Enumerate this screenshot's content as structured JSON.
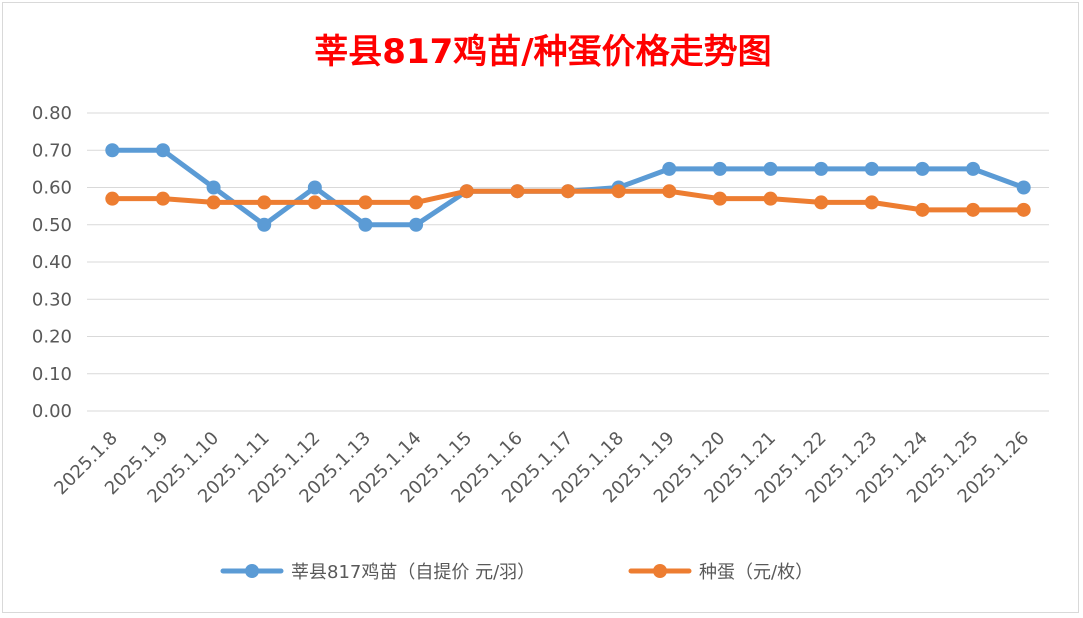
{
  "chart_data": {
    "type": "line",
    "title": "莘县817鸡苗/种蛋价格走势图",
    "title_color": "#ff0000",
    "categories": [
      "2025.1.8",
      "2025.1.9",
      "2025.1.10",
      "2025.1.11",
      "2025.1.12",
      "2025.1.13",
      "2025.1.14",
      "2025.1.15",
      "2025.1.16",
      "2025.1.17",
      "2025.1.18",
      "2025.1.19",
      "2025.1.20",
      "2025.1.21",
      "2025.1.22",
      "2025.1.23",
      "2025.1.24",
      "2025.1.25",
      "2025.1.26"
    ],
    "ylim": [
      0,
      0.8
    ],
    "yticks": [
      "0.00",
      "0.10",
      "0.20",
      "0.30",
      "0.40",
      "0.50",
      "0.60",
      "0.70",
      "0.80"
    ],
    "grid": true,
    "legend_position": "bottom",
    "series": [
      {
        "name": "莘县817鸡苗（自提价 元/羽）",
        "color": "#5b9bd5",
        "values": [
          0.7,
          0.7,
          0.6,
          0.5,
          0.6,
          0.5,
          0.5,
          0.59,
          0.59,
          0.59,
          0.6,
          0.65,
          0.65,
          0.65,
          0.65,
          0.65,
          0.65,
          0.65,
          0.6
        ]
      },
      {
        "name": "种蛋（元/枚）",
        "color": "#ed7d31",
        "values": [
          0.57,
          0.57,
          0.56,
          0.56,
          0.56,
          0.56,
          0.56,
          0.59,
          0.59,
          0.59,
          0.59,
          0.59,
          0.57,
          0.57,
          0.56,
          0.56,
          0.54,
          0.54,
          0.54
        ]
      }
    ]
  }
}
